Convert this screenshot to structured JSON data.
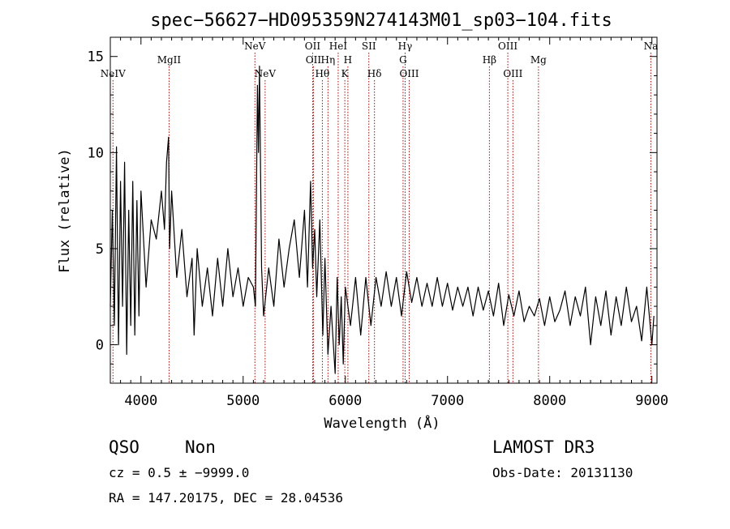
{
  "chart_data": {
    "type": "line",
    "title": "spec−56627−HD095359N274143M01_sp03−104.fits",
    "xlabel": "Wavelength (Å)",
    "ylabel": "Flux (relative)",
    "xlim": [
      3700,
      9050
    ],
    "ylim": [
      -2.0,
      16.0
    ],
    "x_ticks": [
      4000,
      5000,
      6000,
      7000,
      8000,
      9000
    ],
    "x_tick_labels": [
      "4000",
      "5000",
      "6000",
      "7000",
      "8000",
      "9000"
    ],
    "y_ticks": [
      0,
      5,
      10,
      15
    ],
    "y_tick_labels": [
      "0",
      "5",
      "10",
      "15"
    ],
    "grid": false,
    "series": [
      {
        "color": "#000000",
        "x": [
          3700,
          3720,
          3740,
          3760,
          3780,
          3800,
          3820,
          3840,
          3860,
          3880,
          3900,
          3920,
          3940,
          3960,
          3980,
          4000,
          4050,
          4100,
          4150,
          4200,
          4230,
          4250,
          4270,
          4280,
          4300,
          4350,
          4400,
          4450,
          4500,
          4520,
          4550,
          4600,
          4650,
          4700,
          4750,
          4800,
          4850,
          4900,
          4950,
          5000,
          5050,
          5100,
          5120,
          5140,
          5150,
          5160,
          5180,
          5200,
          5250,
          5300,
          5350,
          5400,
          5450,
          5500,
          5550,
          5600,
          5630,
          5660,
          5680,
          5700,
          5720,
          5750,
          5780,
          5800,
          5830,
          5860,
          5900,
          5920,
          5940,
          5960,
          5980,
          6000,
          6050,
          6100,
          6150,
          6200,
          6250,
          6300,
          6350,
          6400,
          6450,
          6500,
          6550,
          6600,
          6650,
          6700,
          6750,
          6800,
          6850,
          6900,
          6950,
          7000,
          7050,
          7100,
          7150,
          7200,
          7250,
          7300,
          7350,
          7400,
          7450,
          7500,
          7550,
          7600,
          7650,
          7700,
          7750,
          7800,
          7850,
          7900,
          7950,
          8000,
          8050,
          8100,
          8150,
          8200,
          8250,
          8300,
          8350,
          8400,
          8450,
          8500,
          8550,
          8600,
          8650,
          8700,
          8750,
          8800,
          8850,
          8900,
          8950,
          9000,
          9020
        ],
        "y": [
          2.0,
          7.0,
          1.0,
          10.3,
          0.0,
          8.5,
          2.0,
          9.5,
          -0.5,
          7.0,
          1.0,
          8.5,
          0.5,
          7.5,
          1.5,
          8.0,
          3.0,
          6.5,
          5.5,
          8.0,
          6.0,
          9.5,
          10.8,
          5.0,
          8.0,
          3.5,
          6.0,
          2.5,
          4.5,
          0.5,
          5.0,
          2.0,
          4.0,
          1.5,
          4.5,
          2.0,
          5.0,
          2.5,
          4.0,
          2.0,
          3.5,
          3.0,
          2.0,
          13.5,
          10.0,
          14.5,
          4.0,
          1.5,
          4.0,
          2.0,
          5.5,
          3.0,
          5.0,
          6.5,
          3.5,
          7.0,
          3.0,
          8.5,
          4.0,
          6.0,
          2.5,
          6.5,
          0.5,
          4.5,
          -0.5,
          2.0,
          -1.5,
          3.5,
          0.0,
          2.5,
          -1.0,
          3.0,
          1.0,
          3.5,
          0.5,
          3.5,
          1.0,
          3.5,
          2.0,
          3.8,
          2.0,
          3.5,
          1.5,
          3.8,
          2.2,
          3.5,
          2.0,
          3.2,
          2.0,
          3.5,
          2.0,
          3.2,
          1.8,
          3.0,
          2.0,
          3.0,
          1.5,
          3.0,
          1.8,
          2.8,
          1.5,
          3.2,
          1.0,
          2.6,
          1.5,
          2.8,
          1.2,
          2.0,
          1.5,
          2.4,
          1.0,
          2.5,
          1.2,
          1.8,
          2.8,
          1.0,
          2.5,
          1.5,
          3.0,
          0.0,
          2.5,
          1.0,
          2.8,
          0.5,
          2.5,
          1.0,
          3.0,
          1.2,
          2.0,
          0.2,
          3.0,
          0.0,
          1.5
        ]
      }
    ],
    "spectral_lines": [
      {
        "name": "NeIV",
        "wl": 3726,
        "row": 3
      },
      {
        "name": "MgII",
        "wl": 4275,
        "row": 2
      },
      {
        "name": "NeV",
        "wl": 5115,
        "row": 1
      },
      {
        "name": "NeV",
        "wl": 5215,
        "row": 3
      },
      {
        "name": "OII",
        "wl": 5680,
        "row": 1
      },
      {
        "name": "OII",
        "wl": 5688,
        "row": 2
      },
      {
        "name": "Hη",
        "wl": 5830,
        "row": 2
      },
      {
        "name": "Hθ",
        "wl": 5775,
        "row": 3
      },
      {
        "name": "HeI",
        "wl": 5930,
        "row": 1
      },
      {
        "name": "H",
        "wl": 6025,
        "row": 2
      },
      {
        "name": "K",
        "wl": 5995,
        "row": 3
      },
      {
        "name": "SII",
        "wl": 6230,
        "row": 1
      },
      {
        "name": "Hδ",
        "wl": 6285,
        "row": 3
      },
      {
        "name": "Hγ",
        "wl": 6585,
        "row": 1
      },
      {
        "name": "G",
        "wl": 6565,
        "row": 2
      },
      {
        "name": "OIII",
        "wl": 6625,
        "row": 3
      },
      {
        "name": "OIII",
        "wl": 7590,
        "row": 1
      },
      {
        "name": "Hβ",
        "wl": 7410,
        "row": 2
      },
      {
        "name": "OIII",
        "wl": 7640,
        "row": 3
      },
      {
        "name": "Mg",
        "wl": 7890,
        "row": 2
      },
      {
        "name": "Na",
        "wl": 8990,
        "row": 1
      }
    ]
  },
  "footer": {
    "class": "QSO",
    "subclass": "Non",
    "cz": "cz = 0.5 ± −9999.0",
    "radec": "RA = 147.20175, DEC =  28.04536",
    "survey": "LAMOST DR3",
    "obsdate": "Obs-Date: 20131130"
  }
}
